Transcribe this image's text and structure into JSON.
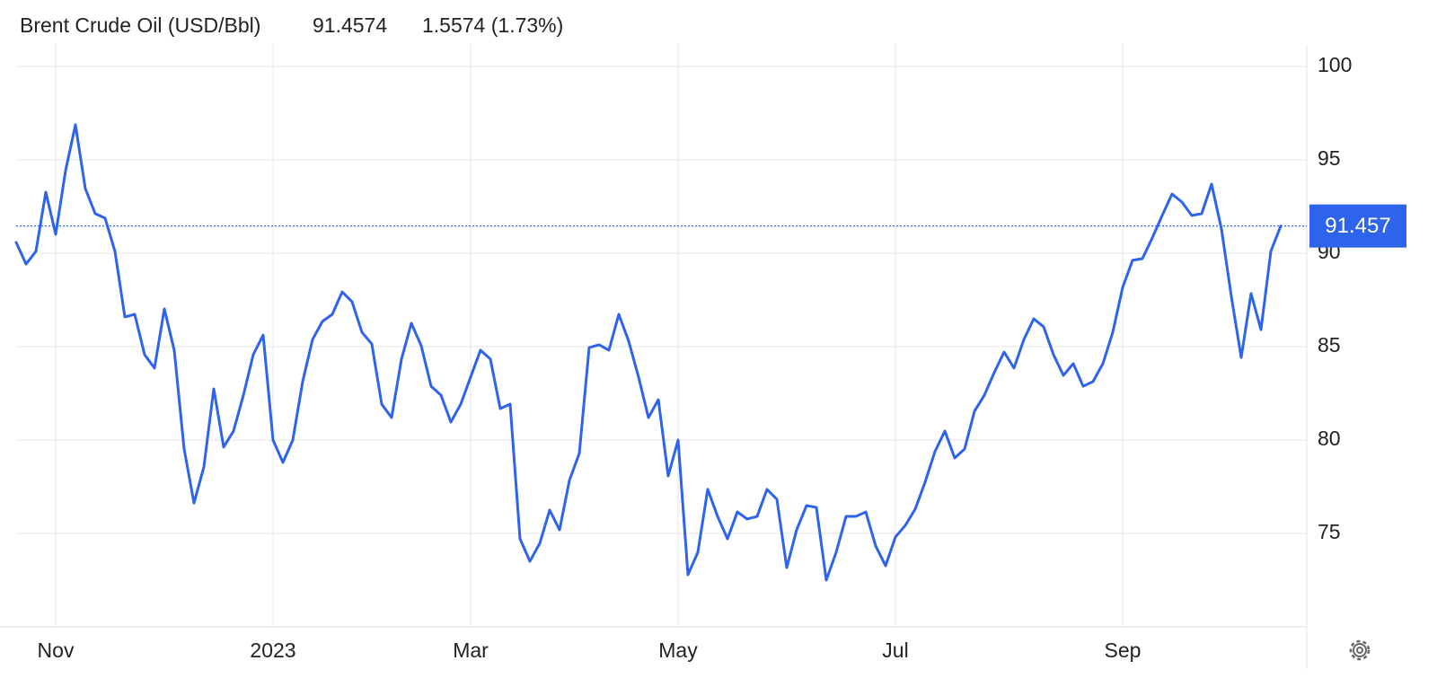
{
  "chart_data": {
    "type": "line",
    "title": "Brent Crude Oil (USD/Bbl)",
    "last_price": "91.4574",
    "change": "1.5574 (1.73%)",
    "price_line": {
      "value": 91.4574,
      "label": "91.457"
    },
    "color": "#2e63eb",
    "change_color": "#3cb043",
    "grid": true,
    "ylim": [
      70,
      101.2
    ],
    "yticks": [
      75,
      80,
      85,
      90,
      95,
      100
    ],
    "categories": [
      null,
      null,
      null,
      null,
      "Nov",
      null,
      null,
      null,
      null,
      null,
      null,
      null,
      null,
      null,
      null,
      null,
      null,
      null,
      null,
      null,
      null,
      null,
      null,
      null,
      null,
      null,
      "2023",
      null,
      null,
      null,
      null,
      null,
      null,
      null,
      null,
      null,
      null,
      null,
      null,
      null,
      null,
      null,
      null,
      null,
      null,
      null,
      "Mar",
      null,
      null,
      null,
      null,
      null,
      null,
      null,
      null,
      null,
      null,
      null,
      null,
      null,
      null,
      null,
      null,
      null,
      null,
      null,
      null,
      "May",
      null,
      null,
      null,
      null,
      null,
      null,
      null,
      null,
      null,
      null,
      null,
      null,
      null,
      null,
      null,
      null,
      null,
      null,
      null,
      null,
      null,
      "Jul",
      null,
      null,
      null,
      null,
      null,
      null,
      null,
      null,
      null,
      null,
      null,
      null,
      null,
      null,
      null,
      null,
      null,
      null,
      null,
      null,
      null,
      null,
      "Sep",
      null,
      null,
      null,
      null,
      null,
      null,
      null,
      null,
      null,
      null,
      null,
      null,
      null,
      null,
      null,
      null
    ],
    "values": [
      90.58,
      89.42,
      90.1,
      93.27,
      91.01,
      94.42,
      96.88,
      93.46,
      92.12,
      91.88,
      90.1,
      86.59,
      86.73,
      84.57,
      83.85,
      87.02,
      84.81,
      79.52,
      76.63,
      78.56,
      82.74,
      79.62,
      80.48,
      82.4,
      84.57,
      85.62,
      80.0,
      78.8,
      80.0,
      83.13,
      85.38,
      86.35,
      86.73,
      87.93,
      87.4,
      85.77,
      85.14,
      81.92,
      81.2,
      84.33,
      86.25,
      85.05,
      82.88,
      82.4,
      80.96,
      81.92,
      83.37,
      84.81,
      84.33,
      81.68,
      81.92,
      74.71,
      73.51,
      74.47,
      76.25,
      75.19,
      77.84,
      79.28,
      84.95,
      85.1,
      84.81,
      86.73,
      85.29,
      83.37,
      81.2,
      82.16,
      78.08,
      80.0,
      72.79,
      73.99,
      77.36,
      75.91,
      74.71,
      76.15,
      75.77,
      75.91,
      77.36,
      76.83,
      73.17,
      75.19,
      76.49,
      76.39,
      72.5,
      73.99,
      75.91,
      75.91,
      76.15,
      74.33,
      73.27,
      74.81,
      75.43,
      76.3,
      77.74,
      79.38,
      80.48,
      79.04,
      79.52,
      81.54,
      82.4,
      83.61,
      84.71,
      83.85,
      85.38,
      86.49,
      86.06,
      84.57,
      83.46,
      84.09,
      82.88,
      83.13,
      84.09,
      85.77,
      88.17,
      89.62,
      89.71,
      90.82,
      92.02,
      93.17,
      92.74,
      92.02,
      92.12,
      93.7,
      91.3,
      87.69,
      84.42,
      87.84,
      85.91,
      90.1,
      91.4574
    ]
  }
}
